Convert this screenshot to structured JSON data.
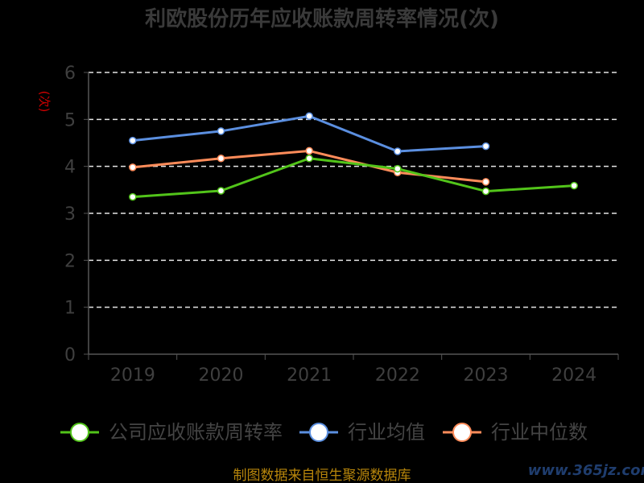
{
  "chart_data": {
    "type": "line",
    "title": "利欧股份历年应收账款周转率情况(次)",
    "unit": "(次)",
    "categories": [
      "2019",
      "2020",
      "2021",
      "2022",
      "2023",
      "2024"
    ],
    "ylim": [
      0,
      6
    ],
    "yticks": [
      "0",
      "1",
      "2",
      "3",
      "4",
      "5",
      "6"
    ],
    "grid": true,
    "legend_position": "bottom",
    "series": [
      {
        "name": "公司应收账款周转率",
        "color": "#52c41a",
        "values": [
          3.35,
          3.48,
          4.17,
          3.95,
          3.47,
          3.59
        ]
      },
      {
        "name": "行业均值",
        "color": "#5b8fe0",
        "values": [
          4.55,
          4.75,
          5.07,
          4.32,
          4.43,
          null
        ]
      },
      {
        "name": "行业中位数",
        "color": "#ff8c5a",
        "values": [
          3.98,
          4.17,
          4.33,
          3.87,
          3.67,
          null
        ]
      }
    ]
  },
  "footer": "制图数据来自恒生聚源数据库",
  "watermark": "www.365jz.com"
}
